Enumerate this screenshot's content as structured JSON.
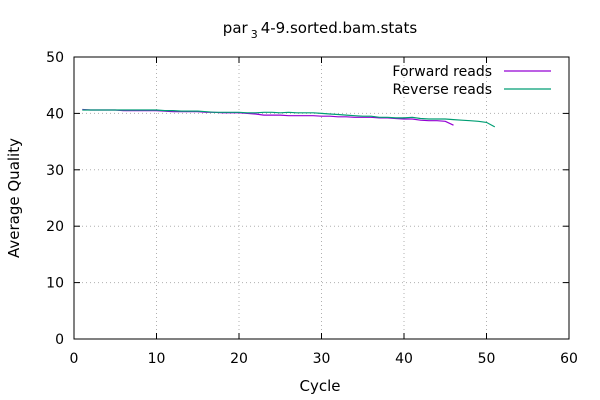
{
  "chart_data": {
    "type": "line",
    "title": {
      "prefix": "par",
      "subscript": "3",
      "suffix": "4-9.sorted.bam.stats"
    },
    "xlabel": "Cycle",
    "ylabel": "Average Quality",
    "xlim": [
      0,
      60
    ],
    "ylim": [
      0,
      50
    ],
    "xticks": [
      0,
      10,
      20,
      30,
      40,
      50,
      60
    ],
    "yticks": [
      0,
      10,
      20,
      30,
      40,
      50
    ],
    "grid": true,
    "legend_position": "top-right",
    "series": [
      {
        "name": "Forward reads",
        "color": "#9400d3",
        "x": [
          1,
          2,
          3,
          4,
          5,
          6,
          7,
          8,
          9,
          10,
          11,
          12,
          13,
          14,
          15,
          16,
          17,
          18,
          19,
          20,
          21,
          22,
          23,
          24,
          25,
          26,
          27,
          28,
          29,
          30,
          31,
          32,
          33,
          34,
          35,
          36,
          37,
          38,
          39,
          40,
          41,
          42,
          43,
          44,
          45,
          46
        ],
        "y": [
          40.7,
          40.6,
          40.6,
          40.6,
          40.6,
          40.5,
          40.5,
          40.5,
          40.5,
          40.5,
          40.4,
          40.3,
          40.3,
          40.3,
          40.3,
          40.2,
          40.2,
          40.1,
          40.1,
          40.1,
          40.0,
          39.9,
          39.7,
          39.7,
          39.7,
          39.6,
          39.6,
          39.6,
          39.6,
          39.5,
          39.5,
          39.4,
          39.4,
          39.3,
          39.3,
          39.3,
          39.2,
          39.2,
          39.1,
          39.0,
          39.0,
          38.8,
          38.7,
          38.7,
          38.6,
          37.9
        ]
      },
      {
        "name": "Reverse reads",
        "color": "#009e73",
        "x": [
          1,
          2,
          3,
          4,
          5,
          6,
          7,
          8,
          9,
          10,
          11,
          12,
          13,
          14,
          15,
          16,
          17,
          18,
          19,
          20,
          21,
          22,
          23,
          24,
          25,
          26,
          27,
          28,
          29,
          30,
          31,
          32,
          33,
          34,
          35,
          36,
          37,
          38,
          39,
          40,
          41,
          42,
          43,
          44,
          45,
          46,
          47,
          48,
          49,
          50,
          51
        ],
        "y": [
          40.6,
          40.6,
          40.6,
          40.6,
          40.6,
          40.6,
          40.6,
          40.6,
          40.6,
          40.6,
          40.5,
          40.5,
          40.4,
          40.4,
          40.4,
          40.3,
          40.2,
          40.2,
          40.2,
          40.2,
          40.1,
          40.1,
          40.2,
          40.2,
          40.1,
          40.2,
          40.1,
          40.1,
          40.1,
          40.0,
          39.9,
          39.8,
          39.7,
          39.6,
          39.5,
          39.5,
          39.3,
          39.3,
          39.2,
          39.2,
          39.3,
          39.1,
          39.0,
          39.0,
          39.0,
          38.9,
          38.8,
          38.7,
          38.6,
          38.4,
          37.6
        ]
      }
    ]
  }
}
